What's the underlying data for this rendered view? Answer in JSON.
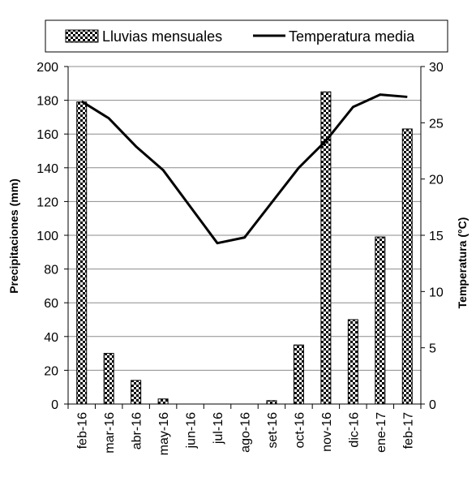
{
  "chart_data": {
    "type": "bar",
    "categories": [
      "feb-16",
      "mar-16",
      "abr-16",
      "may-16",
      "jun-16",
      "jul-16",
      "ago-16",
      "set-16",
      "oct-16",
      "nov-16",
      "dic-16",
      "ene-17",
      "feb-17"
    ],
    "series": [
      {
        "name": "Lluvias mensuales",
        "type": "bar",
        "axis": "left",
        "pattern": "checkerboard",
        "values": [
          179,
          30,
          14,
          3,
          0,
          0,
          0,
          2,
          35,
          185,
          50,
          99,
          163
        ]
      },
      {
        "name": "Temperatura media",
        "type": "line",
        "axis": "right",
        "color": "#000000",
        "values": [
          26.9,
          25.4,
          22.9,
          20.8,
          null,
          14.3,
          14.8,
          null,
          21.0,
          23.4,
          26.4,
          27.5,
          27.3
        ]
      }
    ],
    "ylabel": "Precipitaciones (mm)",
    "y2label": "Temperatura (°C)",
    "ylim": [
      0,
      200
    ],
    "yticks": [
      0,
      20,
      40,
      60,
      80,
      100,
      120,
      140,
      160,
      180,
      200
    ],
    "y2lim": [
      0,
      30
    ],
    "y2ticks": [
      0,
      5,
      10,
      15,
      20,
      25,
      30
    ],
    "grid": true,
    "legend": "top"
  }
}
